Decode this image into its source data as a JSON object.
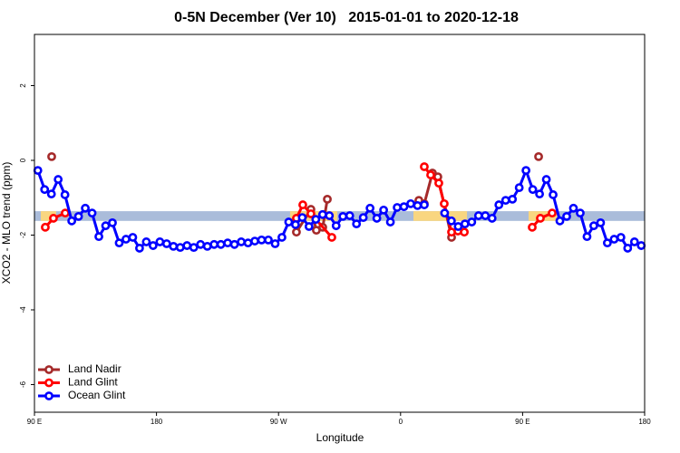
{
  "chart_data": {
    "type": "line",
    "title": "0-5N December (Ver 10)   2015-01-01 to 2020-12-18",
    "x_label": "Longitude",
    "y_label": "XCO2 - MLO trend (ppm)",
    "xlim": [
      90,
      540
    ],
    "ylim": [
      -6.74,
      3.37
    ],
    "xticks": [
      {
        "value": 90,
        "label": "90 E"
      },
      180,
      {
        "value": 270,
        "label": "90 W"
      },
      {
        "value": 360,
        "label": "0"
      },
      {
        "value": 450,
        "label": "90 E"
      },
      {
        "value": 540,
        "label": "180"
      }
    ],
    "yticks": [
      -6,
      -4,
      -2,
      0,
      2
    ],
    "legend": "bottom-left",
    "bands": [
      {
        "xlim": [
          90,
          540
        ],
        "ylim": [
          -1.62,
          -1.36
        ],
        "color": "#aabcda"
      },
      {
        "xlim": [
          94.7,
          106
        ],
        "ylim": [
          -1.62,
          -1.36
        ],
        "color": "#f9d680"
      },
      {
        "xlim": [
          278.5,
          313.3
        ],
        "ylim": [
          -1.62,
          -1.36
        ],
        "color": "#f9d680"
      },
      {
        "xlim": [
          369.5,
          409
        ],
        "ylim": [
          -1.62,
          -1.36
        ],
        "color": "#f9d680"
      },
      {
        "xlim": [
          454.4,
          475.8
        ],
        "ylim": [
          -1.62,
          -1.36
        ],
        "color": "#f9d680"
      }
    ],
    "series": [
      {
        "name": "Land Nadir",
        "color": "#a52a2a",
        "x": [
          102.7,
          null,
          283.2,
          293.9,
          297.9,
          302.6,
          306.0,
          null,
          373.5,
          377.5,
          383.5,
          387.5,
          397.6,
          null,
          461.8
        ],
        "values": [
          0.1,
          null,
          -1.92,
          -1.31,
          -1.87,
          -1.79,
          -1.04,
          null,
          -1.07,
          -1.16,
          -0.34,
          -0.44,
          -2.06,
          null,
          0.1
        ]
      },
      {
        "name": "Land Glint",
        "color": "#ff0000",
        "x": [
          98.0,
          104.0,
          112.7,
          null,
          283.2,
          287.9,
          293.9,
          309.3,
          null,
          377.5,
          382.2,
          388.2,
          392.2,
          397.6,
          402.3,
          407.0,
          null,
          457.1,
          463.1,
          471.8
        ],
        "values": [
          -1.79,
          -1.55,
          -1.41,
          null,
          -1.55,
          -1.19,
          -1.43,
          -2.06,
          null,
          -0.17,
          -0.39,
          -0.61,
          -1.16,
          -1.92,
          -1.89,
          -1.92,
          null,
          -1.79,
          -1.55,
          -1.41
        ]
      },
      {
        "name": "Ocean Glint",
        "color": "#0000ff",
        "x": [
          92.5,
          97.5,
          102.5,
          107.5,
          112.5,
          117.5,
          122.5,
          127.5,
          132.5,
          137.5,
          142.5,
          147.5,
          152.5,
          157.5,
          162.5,
          167.5,
          172.5,
          177.5,
          182.5,
          187.5,
          192.5,
          197.5,
          202.5,
          207.5,
          212.5,
          217.5,
          222.5,
          227.5,
          232.5,
          237.5,
          242.5,
          247.5,
          252.5,
          257.5,
          262.5,
          267.5,
          272.5,
          277.5,
          282.5,
          287.5,
          292.5,
          297.5,
          302.5,
          307.5,
          312.5,
          317.5,
          322.5,
          327.5,
          332.5,
          337.5,
          342.5,
          347.5,
          352.5,
          357.5,
          362.5,
          367.5,
          372.5,
          377.5,
          382.5,
          387.5,
          392.5,
          397.5,
          402.5,
          407.5,
          412.5,
          417.5,
          422.5,
          427.5,
          432.5,
          437.5,
          442.5,
          447.5,
          452.5,
          457.5,
          462.5,
          467.5,
          472.5,
          477.5,
          482.5,
          487.5,
          492.5,
          497.5,
          502.5,
          507.5,
          512.5,
          517.5,
          522.5,
          527.5,
          532.5,
          537.5
        ],
        "values": [
          -0.27,
          -0.78,
          -0.9,
          -0.51,
          -0.92,
          -1.62,
          -1.5,
          -1.28,
          -1.41,
          -2.04,
          -1.75,
          -1.67,
          -2.21,
          -2.11,
          -2.06,
          -2.35,
          -2.18,
          -2.28,
          -2.18,
          -2.23,
          -2.3,
          -2.33,
          -2.28,
          -2.33,
          -2.25,
          -2.3,
          -2.25,
          -2.25,
          -2.21,
          -2.25,
          -2.18,
          -2.21,
          -2.16,
          -2.13,
          -2.13,
          -2.23,
          -2.06,
          -1.65,
          -1.72,
          -1.53,
          -1.77,
          -1.58,
          -1.45,
          -1.48,
          -1.75,
          -1.5,
          -1.48,
          -1.7,
          -1.53,
          -1.28,
          -1.55,
          -1.33,
          -1.65,
          -1.26,
          -1.24,
          -1.16,
          -1.21,
          -1.19,
          null,
          null,
          -1.41,
          -1.62,
          -1.77,
          -1.7,
          -1.65,
          -1.48,
          -1.48,
          -1.55,
          -1.19,
          -1.07,
          -1.04,
          -0.73,
          -0.27,
          -0.78,
          -0.9,
          -0.51,
          -0.92,
          -1.62,
          -1.5,
          -1.28,
          -1.41,
          -2.04,
          -1.75,
          -1.67,
          -2.21,
          -2.11,
          -2.06,
          -2.35,
          -2.18,
          -2.28
        ]
      }
    ]
  }
}
